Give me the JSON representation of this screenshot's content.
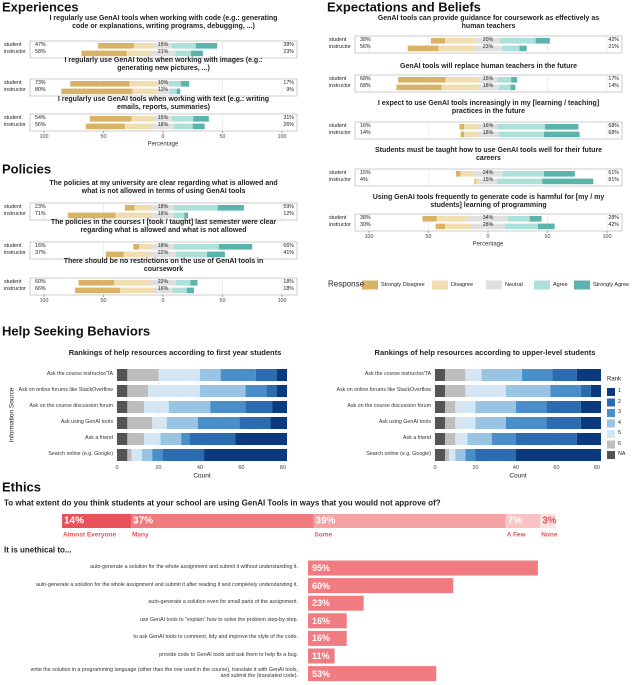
{
  "chart_data": [
    {
      "type": "likert",
      "title": "Experiences",
      "xlabel": "Percentage",
      "xlim": [
        -100,
        100
      ],
      "xticks": [
        {
          "value": -100,
          "label": "100"
        },
        {
          "value": -50,
          "label": "50"
        },
        0,
        50,
        100
      ],
      "grid": true,
      "colors": [
        "#d8b365",
        "#f0ddb0",
        "#e0e0e0",
        "#ace0d8",
        "#5ab4ac"
      ],
      "questions": [
        {
          "text": "I regularly use GenAI tools when working with code (e.g.: generating code or explanations, writing programs, debugging, ...)",
          "rows": [
            {
              "name": "student",
              "values": [
                30,
                17,
                15,
                20,
                18
              ],
              "totals": [
                47,
                15,
                38
              ],
              "totals_labels": [
                "47%",
                "15%",
                "38%"
              ]
            },
            {
              "name": "instructor",
              "values": [
                38,
                20,
                21,
                13,
                10
              ],
              "totals": [
                58,
                21,
                23
              ],
              "totals_labels": [
                "58%",
                "21%",
                "23%"
              ]
            }
          ]
        },
        {
          "text": "I regularly use GenAI tools when working with images (e.g.: generating new pictures, ...)",
          "rows": [
            {
              "name": "student",
              "values": [
                50,
                23,
                10,
                10,
                7
              ],
              "totals": [
                73,
                10,
                17
              ],
              "totals_labels": [
                "73%",
                "10%",
                "17%"
              ]
            },
            {
              "name": "instructor",
              "values": [
                60,
                20,
                11,
                6,
                3
              ],
              "totals": [
                80,
                11,
                9
              ],
              "totals_labels": [
                "80%",
                "11%",
                "9%"
              ]
            }
          ]
        },
        {
          "text": "I regularly use GenAI tools when working with text (e.g.: writing emails, reports, summaries)",
          "rows": [
            {
              "name": "student",
              "values": [
                35,
                19,
                15,
                18,
                13
              ],
              "totals": [
                54,
                15,
                31
              ],
              "totals_labels": [
                "54%",
                "15%",
                "31%"
              ]
            },
            {
              "name": "instructor",
              "values": [
                33,
                23,
                18,
                16,
                10
              ],
              "totals": [
                56,
                18,
                26
              ],
              "totals_labels": [
                "56%",
                "18%",
                "26%"
              ]
            }
          ]
        }
      ]
    },
    {
      "type": "likert",
      "title": "Policies",
      "xlim": [
        -100,
        100
      ],
      "xticks": [
        {
          "value": -100,
          "label": "100"
        },
        {
          "value": -50,
          "label": "50"
        },
        0,
        50,
        100
      ],
      "grid": true,
      "colors": [
        "#d8b365",
        "#f0ddb0",
        "#e0e0e0",
        "#ace0d8",
        "#5ab4ac"
      ],
      "questions": [
        {
          "text": "The policies at my university are clear regarding what is allowed and what is not allowed in terms of using GenAI tools",
          "rows": [
            {
              "name": "student",
              "values": [
                8,
                15,
                18,
                37,
                22
              ],
              "totals": [
                23,
                18,
                59
              ],
              "totals_labels": [
                "23%",
                "18%",
                "59%"
              ]
            },
            {
              "name": "instructor",
              "values": [
                40,
                31,
                18,
                9,
                3
              ],
              "totals": [
                71,
                18,
                12
              ],
              "totals_labels": [
                "71%",
                "18%",
                "12%"
              ]
            }
          ]
        },
        {
          "text": "The policies in the courses I [took / taught] last semester were clear regarding what is allowed and what is not allowed",
          "rows": [
            {
              "name": "student",
              "values": [
                5,
                11,
                18,
                38,
                28
              ],
              "totals": [
                16,
                18,
                66
              ],
              "totals_labels": [
                "16%",
                "18%",
                "66%"
              ]
            },
            {
              "name": "instructor",
              "values": [
                15,
                22,
                22,
                26,
                15
              ],
              "totals": [
                37,
                22,
                41
              ],
              "totals_labels": [
                "37%",
                "22%",
                "41%"
              ]
            }
          ]
        },
        {
          "text": "There should be no restrictions on the use of GenAI tools in coursework",
          "rows": [
            {
              "name": "student",
              "values": [
                30,
                30,
                22,
                12,
                6
              ],
              "totals": [
                60,
                22,
                18
              ],
              "totals_labels": [
                "60%",
                "22%",
                "18%"
              ]
            },
            {
              "name": "instructor",
              "values": [
                38,
                28,
                16,
                12,
                6
              ],
              "totals": [
                66,
                16,
                18
              ],
              "totals_labels": [
                "66%",
                "16%",
                "18%"
              ]
            }
          ]
        }
      ]
    },
    {
      "type": "likert",
      "title": "Expectations and Beliefs",
      "xlabel": "Percentage",
      "xlim": [
        -100,
        100
      ],
      "xticks": [
        {
          "value": -100,
          "label": "100"
        },
        {
          "value": -50,
          "label": "50"
        },
        0,
        50,
        100
      ],
      "grid": true,
      "colors": [
        "#d8b365",
        "#f0ddb0",
        "#e0e0e0",
        "#ace0d8",
        "#5ab4ac"
      ],
      "legend_title": "Response",
      "segments": [
        "Strongly Disagree",
        "Disagree",
        "Neutral",
        "Agree",
        "Strongly Agree"
      ],
      "questions": [
        {
          "text": "GenAI tools can provide guidance for coursework as effectively as human teachers",
          "rows": [
            {
              "name": "student",
              "values": [
                12,
                26,
                20,
                30,
                12
              ],
              "totals": [
                38,
                20,
                42
              ],
              "totals_labels": [
                "38%",
                "20%",
                "42%"
              ]
            },
            {
              "name": "instructor",
              "values": [
                26,
                30,
                23,
                15,
                6
              ],
              "totals": [
                56,
                23,
                21
              ],
              "totals_labels": [
                "56%",
                "23%",
                "21%"
              ]
            }
          ]
        },
        {
          "text": "GenAI tools will replace human teachers in the future",
          "rows": [
            {
              "name": "student",
              "values": [
                40,
                28,
                15,
                12,
                5
              ],
              "totals": [
                68,
                15,
                17
              ],
              "totals_labels": [
                "68%",
                "15%",
                "17%"
              ]
            },
            {
              "name": "instructor",
              "values": [
                38,
                30,
                18,
                10,
                4
              ],
              "totals": [
                68,
                18,
                14
              ],
              "totals_labels": [
                "68%",
                "18%",
                "14%"
              ]
            }
          ]
        },
        {
          "text": "I expect to use GenAI tools increasingly in my [learning / teaching] practices in the future",
          "rows": [
            {
              "name": "student",
              "values": [
                4,
                12,
                16,
                40,
                28
              ],
              "totals": [
                16,
                16,
                68
              ],
              "totals_labels": [
                "16%",
                "16%",
                "68%"
              ]
            },
            {
              "name": "instructor",
              "values": [
                3,
                11,
                18,
                38,
                30
              ],
              "totals": [
                14,
                18,
                68
              ],
              "totals_labels": [
                "14%",
                "18%",
                "68%"
              ]
            }
          ]
        },
        {
          "text": "Students must be taught how to use GenAI tools well for their future careers",
          "rows": [
            {
              "name": "student",
              "values": [
                4,
                11,
                24,
                35,
                26
              ],
              "totals": [
                15,
                24,
                61
              ],
              "totals_labels": [
                "15%",
                "24%",
                "61%"
              ]
            },
            {
              "name": "instructor",
              "values": [
                1,
                3,
                15,
                38,
                43
              ],
              "totals": [
                4,
                15,
                81
              ],
              "totals_labels": [
                "4%",
                "15%",
                "81%"
              ]
            }
          ]
        },
        {
          "text": "Using GenAI tools frequently to generate code is harmful for [my / my students] learning of programming",
          "rows": [
            {
              "name": "student",
              "values": [
                12,
                26,
                34,
                18,
                10
              ],
              "totals": [
                38,
                34,
                28
              ],
              "totals_labels": [
                "38%",
                "34%",
                "28%"
              ]
            },
            {
              "name": "instructor",
              "values": [
                8,
                22,
                28,
                28,
                14
              ],
              "totals": [
                30,
                28,
                42
              ],
              "totals_labels": [
                "30%",
                "28%",
                "42%"
              ]
            }
          ]
        }
      ]
    },
    {
      "type": "stacked_barh",
      "section": "Help Seeking Behaviors",
      "title": "Rankings of help resources according to first year students",
      "xlabel": "Count",
      "ylabel": "Information Source",
      "xlim": [
        0,
        82
      ],
      "xticks": [
        0,
        20,
        40,
        60,
        80
      ],
      "grid": true,
      "categories": [
        "Ask the course instructor/TA",
        "Ask on online forums like StackOverflow",
        "Ask on the course discussion forum",
        "Ask using GenAI tools",
        "Ask a friend",
        "Search online (e.g. Google)"
      ],
      "series": [
        {
          "color": "#0b3a7e",
          "values": [
            5,
            5,
            7,
            8,
            25,
            40
          ]
        },
        {
          "color": "#2b6cb0",
          "values": [
            10,
            5,
            13,
            15,
            22,
            20
          ]
        },
        {
          "color": "#4a8fc9",
          "values": [
            17,
            10,
            17,
            20,
            4,
            5
          ]
        },
        {
          "color": "#9ac4e4",
          "values": [
            10,
            22,
            20,
            15,
            10,
            5
          ]
        },
        {
          "color": "#d4e6f4",
          "values": [
            20,
            25,
            12,
            7,
            8,
            5
          ]
        },
        {
          "color": "#bdbdbd",
          "values": [
            15,
            10,
            8,
            12,
            8,
            2
          ]
        },
        {
          "color": "#555555",
          "values": [
            5,
            5,
            5,
            5,
            5,
            5
          ]
        }
      ]
    },
    {
      "type": "stacked_barh",
      "title": "Rankings of help resources according to upper-level students",
      "xlabel": "Count",
      "xlim": [
        0,
        82
      ],
      "xticks": [
        0,
        20,
        40,
        60,
        80
      ],
      "grid": true,
      "legend_title": "Rank",
      "categories": [
        "Ask the course instructor/TA",
        "Ask on online forums like StackOverflow",
        "Ask on the course discussion forum",
        "Ask using GenAI tools",
        "Ask a friend",
        "Search online (e.g. Google)"
      ],
      "series": [
        {
          "name": "1",
          "color": "#0b3a7e",
          "values": [
            12,
            5,
            10,
            10,
            12,
            42
          ]
        },
        {
          "name": "2",
          "color": "#2b6cb0",
          "values": [
            12,
            5,
            17,
            17,
            30,
            20
          ]
        },
        {
          "name": "3",
          "color": "#4a8fc9",
          "values": [
            15,
            15,
            15,
            20,
            12,
            5
          ]
        },
        {
          "name": "4",
          "color": "#9ac4e4",
          "values": [
            20,
            22,
            20,
            15,
            12,
            5
          ]
        },
        {
          "name": "5",
          "color": "#d4e6f4",
          "values": [
            8,
            20,
            10,
            10,
            6,
            3
          ]
        },
        {
          "name": "6",
          "color": "#bdbdbd",
          "values": [
            10,
            10,
            5,
            5,
            5,
            2
          ]
        },
        {
          "name": "NA",
          "color": "#555555",
          "values": [
            5,
            5,
            5,
            5,
            5,
            5
          ]
        }
      ]
    },
    {
      "type": "bar100",
      "section": "Ethics",
      "title": "To what extent do you think students at your school are using GenAI Tools in ways that you would not approve of?",
      "xlim": [
        0,
        100
      ],
      "label_color": "#e0555c",
      "series": [
        {
          "name": "Almost Everyone",
          "color": "#e8525a",
          "values": [
            14
          ],
          "value_labels": [
            "14%"
          ]
        },
        {
          "name": "Many",
          "color": "#ef7b7f",
          "values": [
            37
          ],
          "value_labels": [
            "37%"
          ]
        },
        {
          "name": "Some",
          "color": "#f4a2a4",
          "values": [
            39
          ],
          "value_labels": [
            "39%"
          ]
        },
        {
          "name": "A Few",
          "color": "#f8c3c5",
          "values": [
            7
          ],
          "value_labels": [
            "7%"
          ]
        },
        {
          "name": "None",
          "color": "#fbe1e2",
          "values": [
            3
          ],
          "value_labels": [
            "3%"
          ]
        }
      ]
    },
    {
      "type": "barh",
      "title": "It is unethical to...",
      "xlim": [
        0,
        100
      ],
      "color": "#f07b80",
      "categories": [
        "auto-generate  a solution for the whole assignment and submit it without understanding it.",
        "auto-generate a solution for the whole assignment and submit it after reading it and completely understanding it.",
        "auto-generate a solution even for small parts of the assignment.",
        "use GenAI tools to \"explain\" how to solve the problem step-by-step.",
        "to ask GenAI tools to comment, tidy and improve the style of the code.",
        "provide code to GenAI tools and ask them to help fix a bug.",
        "write the solution in a programming language (other than the one used in the course), translate it with GenAI tools, and submit the (translated code)."
      ],
      "values": [
        95,
        60,
        23,
        16,
        16,
        11,
        53
      ],
      "value_labels": [
        "95%",
        "60%",
        "23%",
        "16%",
        "16%",
        "11%",
        "53%"
      ]
    }
  ]
}
